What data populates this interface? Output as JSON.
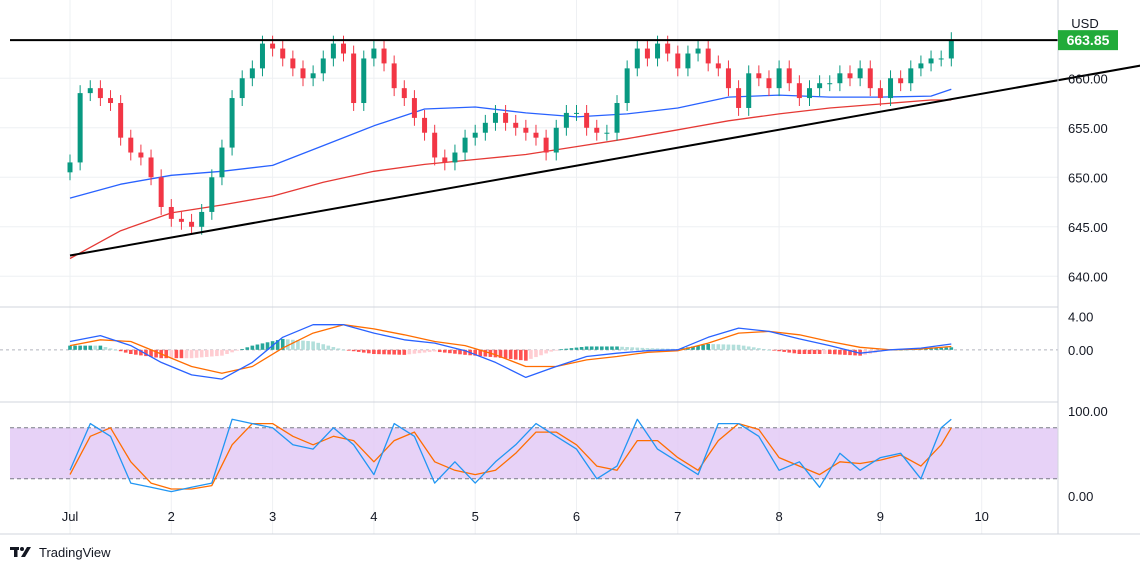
{
  "currency": "USD",
  "last_price_label": "663.85",
  "brand": "TradingView",
  "colors": {
    "up": "#089981",
    "down": "#f23645",
    "ma_fast": "#2962ff",
    "ma_slow": "#e53935",
    "trendline": "#000000",
    "last_price": "#22ab3a",
    "macd_line": "#2962ff",
    "signal_line": "#ff6d00",
    "hist_up_strong": "#26a69a",
    "hist_up_weak": "#b2dfdb",
    "hist_down_strong": "#ff5252",
    "hist_down_weak": "#ffcdd2",
    "stoch_band": "#e1c7f5",
    "stoch_k": "#2196f3",
    "stoch_d": "#ff6d00",
    "grid": "#eef0f3"
  },
  "chart_data": [
    {
      "type": "candlestick",
      "panel": "price",
      "x_tick_labels": [
        "Jul",
        "2",
        "3",
        "4",
        "5",
        "6",
        "7",
        "8",
        "9",
        "10"
      ],
      "y_tick_labels": [
        "660.00",
        "655.00",
        "650.00",
        "645.00",
        "640.00"
      ],
      "ylim": [
        637.0,
        667.5
      ],
      "resistance_level": 663.85,
      "trendline": {
        "from": {
          "x": 0.0,
          "y": 642.1
        },
        "to": {
          "x": 10.8,
          "y": 661.7
        }
      },
      "series": [
        {
          "name": "",
          "type": "line",
          "note": "fast moving average (blue)",
          "x": [
            0.0,
            0.5,
            1.0,
            1.5,
            2.0,
            2.5,
            3.0,
            3.5,
            4.0,
            4.5,
            5.0,
            5.5,
            6.0,
            6.5,
            7.0,
            7.5,
            8.0,
            8.5,
            8.7
          ],
          "y": [
            647.9,
            649.3,
            650.2,
            650.6,
            651.2,
            653.2,
            655.2,
            656.9,
            657.1,
            656.5,
            656.1,
            656.4,
            657.0,
            658.1,
            658.3,
            658.1,
            658.1,
            658.2,
            658.9
          ]
        },
        {
          "name": "",
          "type": "line",
          "note": "slow moving average (red)",
          "x": [
            0.0,
            0.5,
            1.0,
            1.5,
            2.0,
            2.5,
            3.0,
            3.5,
            4.0,
            4.5,
            5.0,
            5.5,
            6.0,
            6.5,
            7.0,
            7.5,
            8.0,
            8.5,
            8.7
          ],
          "y": [
            641.8,
            644.6,
            646.4,
            647.2,
            648.1,
            649.5,
            650.6,
            651.3,
            651.8,
            652.3,
            653.1,
            653.9,
            654.8,
            655.7,
            656.4,
            657.0,
            657.4,
            657.8,
            657.8
          ]
        },
        {
          "name": "",
          "type": "close",
          "note": "candle closes",
          "x": [
            0.0,
            0.1,
            0.2,
            0.3,
            0.4,
            0.5,
            0.6,
            0.7,
            0.8,
            0.9,
            1.0,
            1.1,
            1.2,
            1.3,
            1.4,
            1.5,
            1.6,
            1.7,
            1.8,
            1.9,
            2.0,
            2.1,
            2.2,
            2.3,
            2.4,
            2.5,
            2.6,
            2.7,
            2.8,
            2.9,
            3.0,
            3.1,
            3.2,
            3.3,
            3.4,
            3.5,
            3.6,
            3.7,
            3.8,
            3.9,
            4.0,
            4.1,
            4.2,
            4.3,
            4.4,
            4.5,
            4.6,
            4.7,
            4.8,
            4.9,
            5.0,
            5.1,
            5.2,
            5.3,
            5.4,
            5.5,
            5.6,
            5.7,
            5.8,
            5.9,
            6.0,
            6.1,
            6.2,
            6.3,
            6.4,
            6.5,
            6.6,
            6.7,
            6.8,
            6.9,
            7.0,
            7.1,
            7.2,
            7.3,
            7.4,
            7.5,
            7.6,
            7.7,
            7.8,
            7.9,
            8.0,
            8.1,
            8.2,
            8.3,
            8.4,
            8.5,
            8.6,
            8.7
          ],
          "y": [
            651.5,
            658.5,
            659.0,
            658.0,
            657.5,
            654.0,
            652.5,
            652.0,
            650.0,
            647.0,
            645.8,
            645.5,
            645.0,
            646.5,
            650.0,
            653.0,
            658.0,
            660.0,
            661.0,
            663.5,
            663.0,
            662.0,
            661.0,
            660.0,
            660.5,
            662.0,
            663.5,
            662.5,
            657.5,
            662.0,
            663.0,
            661.5,
            659.0,
            658.0,
            656.0,
            654.5,
            652.0,
            651.5,
            652.5,
            654.0,
            654.5,
            655.5,
            656.5,
            655.5,
            655.0,
            654.5,
            654.0,
            652.5,
            655.0,
            656.5,
            656.5,
            655.0,
            654.5,
            654.5,
            657.5,
            661.0,
            663.0,
            662.0,
            663.5,
            662.5,
            661.0,
            662.5,
            663.0,
            661.5,
            661.0,
            659.0,
            657.0,
            660.5,
            660.0,
            659.0,
            661.0,
            659.5,
            658.0,
            659.0,
            659.5,
            659.5,
            660.5,
            660.0,
            661.0,
            659.0,
            658.0,
            660.0,
            659.5,
            661.0,
            661.5,
            662.0,
            662.0,
            663.85
          ]
        }
      ]
    },
    {
      "type": "line",
      "panel": "macd",
      "y_tick_labels": [
        "4.00",
        "0.00"
      ],
      "ylim": [
        -6.0,
        5.0
      ],
      "series": [
        {
          "name": "",
          "type": "line",
          "note": "MACD line (blue)",
          "x": [
            0.0,
            0.3,
            0.6,
            0.9,
            1.2,
            1.5,
            1.8,
            2.1,
            2.4,
            2.7,
            3.0,
            3.3,
            3.6,
            3.9,
            4.2,
            4.5,
            4.8,
            5.1,
            5.4,
            5.7,
            6.0,
            6.3,
            6.6,
            6.9,
            7.2,
            7.5,
            7.8,
            8.1,
            8.4,
            8.7
          ],
          "y": [
            1.0,
            1.7,
            0.5,
            -1.5,
            -3.0,
            -3.5,
            -1.5,
            1.5,
            3.0,
            3.0,
            2.0,
            1.2,
            0.8,
            -0.1,
            -1.5,
            -3.3,
            -2.0,
            -0.8,
            -0.4,
            -0.1,
            0.0,
            1.5,
            2.6,
            2.2,
            1.3,
            0.5,
            -0.4,
            0.0,
            0.2,
            0.7
          ]
        },
        {
          "name": "",
          "type": "line",
          "note": "signal line (orange)",
          "x": [
            0.0,
            0.3,
            0.6,
            0.9,
            1.2,
            1.5,
            1.8,
            2.1,
            2.4,
            2.7,
            3.0,
            3.3,
            3.6,
            3.9,
            4.2,
            4.5,
            4.8,
            5.1,
            5.4,
            5.7,
            6.0,
            6.3,
            6.6,
            6.9,
            7.2,
            7.5,
            7.8,
            8.1,
            8.4,
            8.7
          ],
          "y": [
            0.5,
            1.2,
            1.0,
            -0.5,
            -2.0,
            -2.8,
            -2.0,
            0.2,
            2.0,
            3.0,
            2.5,
            1.8,
            1.0,
            0.5,
            -0.6,
            -2.0,
            -2.0,
            -1.2,
            -0.8,
            -0.3,
            -0.1,
            0.8,
            2.0,
            2.2,
            1.8,
            1.0,
            0.3,
            0.0,
            0.1,
            0.4
          ]
        }
      ]
    },
    {
      "type": "line",
      "panel": "stochastic",
      "y_tick_labels": [
        "100.00",
        "0.00"
      ],
      "ylim": [
        -12.0,
        108.0
      ],
      "band": [
        20.0,
        80.0
      ],
      "series": [
        {
          "name": "",
          "type": "line",
          "note": "%K (blue)",
          "x": [
            0.0,
            0.2,
            0.4,
            0.6,
            0.8,
            1.0,
            1.2,
            1.4,
            1.6,
            1.8,
            2.0,
            2.2,
            2.4,
            2.6,
            2.8,
            3.0,
            3.2,
            3.4,
            3.6,
            3.8,
            4.0,
            4.2,
            4.4,
            4.6,
            4.8,
            5.0,
            5.2,
            5.4,
            5.6,
            5.8,
            6.0,
            6.2,
            6.4,
            6.6,
            6.8,
            7.0,
            7.2,
            7.4,
            7.6,
            7.8,
            8.0,
            8.2,
            8.4,
            8.6,
            8.7
          ],
          "y": [
            30.0,
            85.0,
            70.0,
            15.0,
            10.0,
            5.0,
            10.0,
            15.0,
            90.0,
            85.0,
            80.0,
            60.0,
            55.0,
            80.0,
            60.0,
            25.0,
            85.0,
            70.0,
            15.0,
            40.0,
            15.0,
            40.0,
            60.0,
            85.0,
            70.0,
            55.0,
            20.0,
            35.0,
            90.0,
            55.0,
            40.0,
            25.0,
            85.0,
            85.0,
            70.0,
            30.0,
            40.0,
            10.0,
            50.0,
            30.0,
            45.0,
            50.0,
            20.0,
            80.0,
            90.0
          ]
        },
        {
          "name": "",
          "type": "line",
          "note": "%D (orange)",
          "x": [
            0.0,
            0.2,
            0.4,
            0.6,
            0.8,
            1.0,
            1.2,
            1.4,
            1.6,
            1.8,
            2.0,
            2.2,
            2.4,
            2.6,
            2.8,
            3.0,
            3.2,
            3.4,
            3.6,
            3.8,
            4.0,
            4.2,
            4.4,
            4.6,
            4.8,
            5.0,
            5.2,
            5.4,
            5.6,
            5.8,
            6.0,
            6.2,
            6.4,
            6.6,
            6.8,
            7.0,
            7.2,
            7.4,
            7.6,
            7.8,
            8.0,
            8.2,
            8.4,
            8.6,
            8.7
          ],
          "y": [
            25.0,
            70.0,
            80.0,
            40.0,
            15.0,
            8.0,
            8.0,
            12.0,
            60.0,
            85.0,
            85.0,
            70.0,
            60.0,
            70.0,
            65.0,
            40.0,
            65.0,
            75.0,
            40.0,
            30.0,
            25.0,
            30.0,
            50.0,
            75.0,
            75.0,
            60.0,
            35.0,
            30.0,
            65.0,
            65.0,
            45.0,
            30.0,
            65.0,
            85.0,
            78.0,
            45.0,
            35.0,
            25.0,
            40.0,
            38.0,
            42.0,
            48.0,
            35.0,
            60.0,
            80.0
          ]
        }
      ]
    }
  ]
}
